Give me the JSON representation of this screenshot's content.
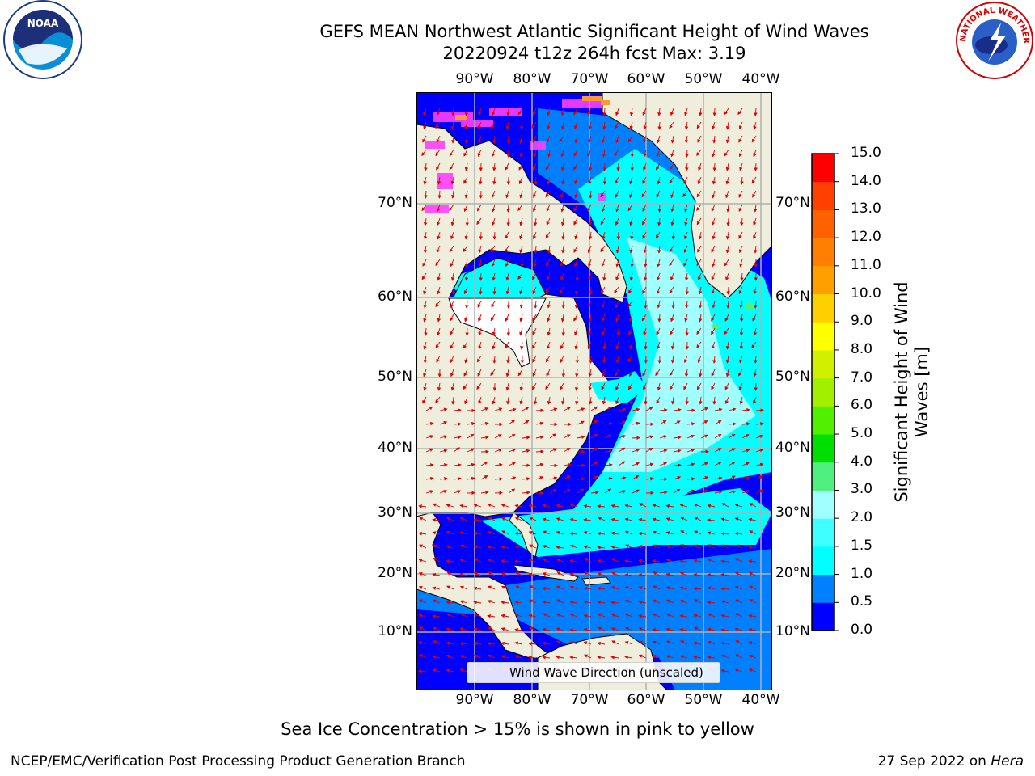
{
  "title_line1": "GEFS MEAN Northwest Atlantic Significant Height of Wind Waves",
  "title_line2": "20220924 t12z 264h fcst   Max: 3.19",
  "lon_labels": [
    "90°W",
    "80°W",
    "70°W",
    "60°W",
    "50°W",
    "40°W"
  ],
  "lat_labels": [
    "70°N",
    "60°N",
    "50°N",
    "40°N",
    "30°N",
    "20°N",
    "10°N"
  ],
  "colorbar": {
    "label": "Significant Height of Wind Waves [m]",
    "label_line1": "Significant Height of Wind",
    "label_line2": "Waves [m]",
    "ticks": [
      "15.0",
      "14.0",
      "13.0",
      "12.0",
      "11.0",
      "10.0",
      "9.0",
      "8.0",
      "7.0",
      "6.0",
      "5.0",
      "4.0",
      "3.0",
      "2.0",
      "1.5",
      "1.0",
      "0.5",
      "0.0"
    ],
    "colors": [
      "#0000ff",
      "#0080ff",
      "#00ffff",
      "#40ffff",
      "#a0ffff",
      "#50f080",
      "#00e000",
      "#50f000",
      "#a0f000",
      "#d0f000",
      "#ffff00",
      "#ffd000",
      "#ffa000",
      "#ff8000",
      "#ff6000",
      "#ff4000",
      "#ff0000"
    ]
  },
  "legend_label": "Wind Wave Direction (unscaled)",
  "caption": "Sea Ice Concentration > 15% is shown in pink to yellow",
  "footer_left": "NCEP/EMC/Verification Post Processing Product Generation Branch",
  "footer_right_date": "27 Sep 2022 on ",
  "footer_right_host": "Hera",
  "logos": {
    "left": "NOAA",
    "right": "NATIONAL WEATHER SERVICE"
  },
  "map_colors": {
    "land": "#efeedd",
    "grid": "#b0b0b0",
    "arrow": "#e00000",
    "ice": "#ff40ff"
  }
}
